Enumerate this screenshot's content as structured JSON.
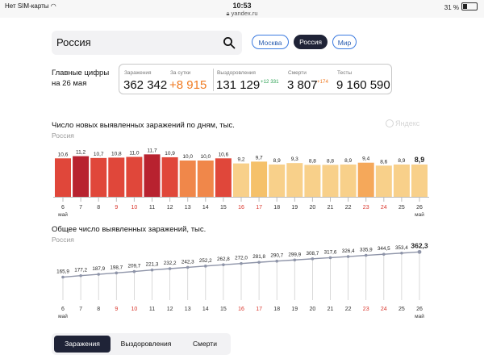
{
  "statusbar": {
    "carrier": "Нет SIM-карты",
    "time": "10:53",
    "url": "yandex.ru",
    "battery": "31 %"
  },
  "search": {
    "value": "Россия"
  },
  "region_tabs": [
    "Москва",
    "Россия",
    "Мир"
  ],
  "main_figures": {
    "title_line1": "Главные цифры",
    "title_line2": "на 26 мая"
  },
  "stats": {
    "infected": {
      "label": "Заражения",
      "value": "362 342"
    },
    "daily": {
      "label": "За сутки",
      "value": "+8 915"
    },
    "recovered": {
      "label": "Выздоровления",
      "value": "131 129",
      "delta": "+12 331"
    },
    "deaths": {
      "label": "Смерти",
      "value": "3 807",
      "delta": "+174"
    },
    "tests": {
      "label": "Тесты",
      "value": "9 160 590"
    }
  },
  "watermark": "Яндекс",
  "chart_data": [
    {
      "type": "bar",
      "title": "Число новых выявленных заражений по дням, тыс.",
      "subtitle": "Россия",
      "categories": [
        "6",
        "7",
        "8",
        "9",
        "10",
        "11",
        "12",
        "13",
        "14",
        "15",
        "16",
        "17",
        "18",
        "19",
        "20",
        "21",
        "22",
        "23",
        "24",
        "25",
        "26"
      ],
      "month_label": "май",
      "weekend": [
        "9",
        "10",
        "16",
        "17",
        "23",
        "24"
      ],
      "values": [
        10.6,
        11.2,
        10.7,
        10.8,
        11.0,
        11.7,
        10.9,
        10.0,
        10.0,
        10.6,
        9.2,
        9.7,
        8.9,
        9.3,
        8.8,
        8.8,
        8.9,
        9.4,
        8.6,
        8.9,
        8.9
      ],
      "labels": [
        "10,6",
        "11,2",
        "10,7",
        "10,8",
        "11,0",
        "11,7",
        "10,9",
        "10,0",
        "10,0",
        "10,6",
        "9,2",
        "9,7",
        "8,9",
        "9,3",
        "8,8",
        "8,8",
        "8,9",
        "9,4",
        "8,6",
        "8,9",
        "8,9"
      ],
      "colors": [
        "#e0473a",
        "#b8222f",
        "#e0473a",
        "#e0473a",
        "#e0473a",
        "#b8222f",
        "#e0473a",
        "#f0874a",
        "#f0874a",
        "#e0473a",
        "#f8d08a",
        "#f5c16a",
        "#f8d08a",
        "#f8d08a",
        "#f8d08a",
        "#f8d08a",
        "#f8d08a",
        "#f5a85a",
        "#f8d08a",
        "#f8d08a",
        "#f8d08a"
      ],
      "ylim": [
        0,
        12
      ]
    },
    {
      "type": "line",
      "title": "Общее число выявленных заражений, тыс.",
      "subtitle": "Россия",
      "categories": [
        "6",
        "7",
        "8",
        "9",
        "10",
        "11",
        "12",
        "13",
        "14",
        "15",
        "16",
        "17",
        "18",
        "19",
        "20",
        "21",
        "22",
        "23",
        "24",
        "25",
        "26"
      ],
      "month_label": "май",
      "weekend": [
        "9",
        "10",
        "16",
        "17",
        "23",
        "24"
      ],
      "values": [
        165.9,
        177.2,
        187.9,
        198.7,
        209.7,
        221.3,
        232.2,
        242.3,
        252.2,
        262.8,
        272.0,
        281.8,
        290.7,
        299.9,
        308.7,
        317.6,
        326.4,
        335.9,
        344.5,
        353.4,
        362.3
      ],
      "labels": [
        "165,9",
        "177,2",
        "187,9",
        "198,7",
        "209,7",
        "221,3",
        "232,2",
        "242,3",
        "252,2",
        "262,8",
        "272,0",
        "281,8",
        "290,7",
        "299,9",
        "308,7",
        "317,6",
        "326,4",
        "335,9",
        "344,5",
        "353,4",
        "362,3"
      ]
    }
  ],
  "bottom_tabs": [
    "Заражения",
    "Выздоровления",
    "Смерти"
  ]
}
